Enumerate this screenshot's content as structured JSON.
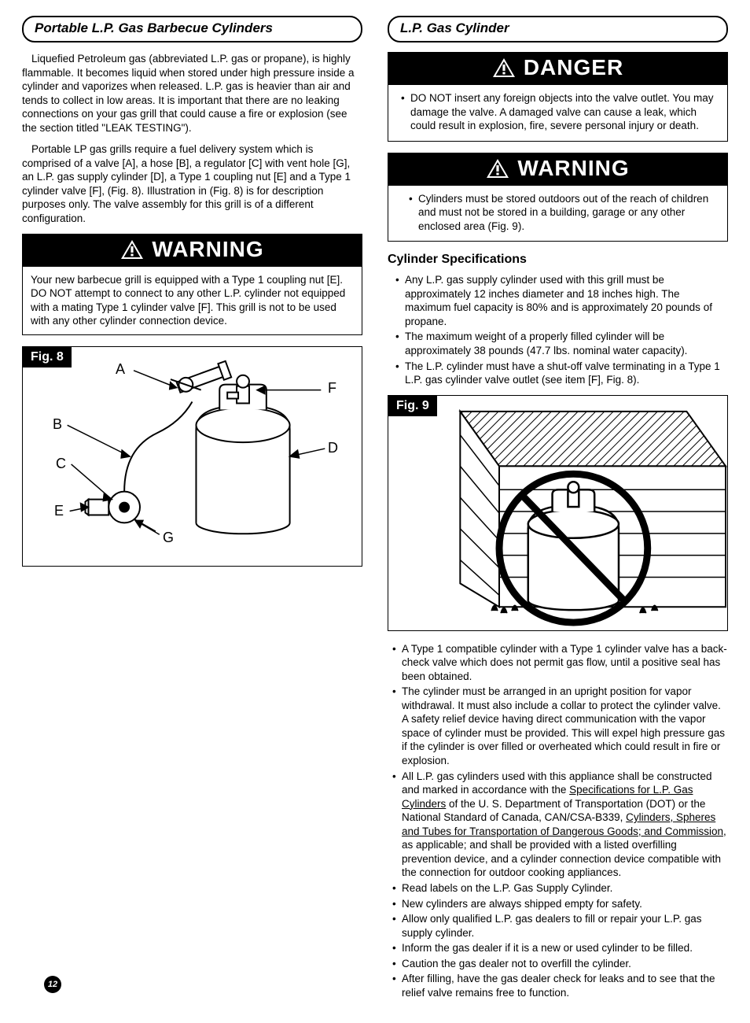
{
  "page_number": "12",
  "left": {
    "heading": "Portable L.P. Gas Barbecue Cylinders",
    "para1": "Liquefied Petroleum gas (abbreviated L.P. gas or propane), is highly flammable.  It becomes liquid when stored under high pressure inside a cylinder and vaporizes when released. L.P. gas is heavier than air and tends to collect in low areas. It is important that there are no leaking connections on your gas grill that could cause a fire or explosion (see the section titled \"LEAK TESTING\").",
    "para2": "Portable LP gas grills require a fuel delivery system which is comprised of a valve [A], a hose [B], a regulator [C] with vent hole [G], an L.P. gas supply cylinder [D], a Type 1 coupling nut [E] and a Type 1 cylinder valve [F], (Fig. 8). Illustration in (Fig. 8) is for description purposes only. The valve assembly for this grill is of a different configuration.",
    "warning_label": "WARNING",
    "warning_text": "Your new barbecue grill is equipped with a Type 1 coupling nut [E]. DO NOT attempt to connect to any other L.P. cylinder not equipped with a mating Type 1 cylinder valve [F].  This grill is not to be used with any other cylinder connection device.",
    "fig8_label": "Fig. 8",
    "fig8_callouts": {
      "A": "A",
      "B": "B",
      "C": "C",
      "D": "D",
      "E": "E",
      "F": "F",
      "G": "G"
    }
  },
  "right": {
    "heading": "L.P. Gas Cylinder",
    "danger_label": "DANGER",
    "danger_text": "DO NOT insert any foreign objects into the valve outlet. You may damage the valve. A damaged valve can cause a leak, which could result in explosion, fire, severe personal injury or death.",
    "warning_label": "WARNING",
    "warning_text": "Cylinders must be stored outdoors out of the reach of children and must not be stored in a building, garage or any other enclosed area (Fig. 9).",
    "spec_heading": "Cylinder Specifications",
    "specs_top": [
      "Any L.P. gas supply cylinder used with this grill must be approximately 12 inches diameter and 18 inches high. The maximum fuel capacity is 80% and is approximately 20 pounds of propane.",
      "The maximum weight of a properly filled cylinder will be approximately 38 pounds (47.7 lbs. nominal water capacity).",
      "The L.P. cylinder must have a shut-off valve terminating in a Type 1 L.P. gas cylinder valve outlet (see item [F], Fig. 8)."
    ],
    "fig9_label": "Fig. 9",
    "specs_bottom": [
      "A Type 1 compatible cylinder with a Type 1 cylinder valve has a back-check valve which does not permit gas flow, until a positive seal has been obtained.",
      "The cylinder must be arranged in an upright position for vapor withdrawal. It must also include a collar to protect the cylinder valve. A safety relief device having direct communication with the vapor space of cylinder must be provided. This will expel high pressure gas if the cylinder is over filled or overheated which could result in fire or explosion.",
      "__HTML__All L.P. gas cylinders used with this appliance shall be constructed and marked in accordance with the <span class=\"underline\">Specifications for L.P. Gas Cylinders</span> of the U. S. Department of Transportation (DOT) or the National Standard of Canada, CAN/CSA-B339, <span class=\"underline\">Cylinders, Spheres and Tubes for Transportation of Dangerous Goods; and Commission</span>, as applicable; and shall be provided with a listed overfilling prevention device, and a cylinder connection device compatible with the connection for outdoor cooking appliances.",
      "Read labels on the L.P. Gas Supply Cylinder.",
      "New cylinders are always shipped empty for safety.",
      "Allow only qualified L.P. gas dealers to fill or repair your L.P. gas supply cylinder.",
      "Inform the gas dealer if it is a new or used cylinder to be filled.",
      "Caution the gas dealer not to overfill the cylinder.",
      "After filling, have the gas dealer check for leaks and to see that the relief valve remains free to function."
    ]
  }
}
